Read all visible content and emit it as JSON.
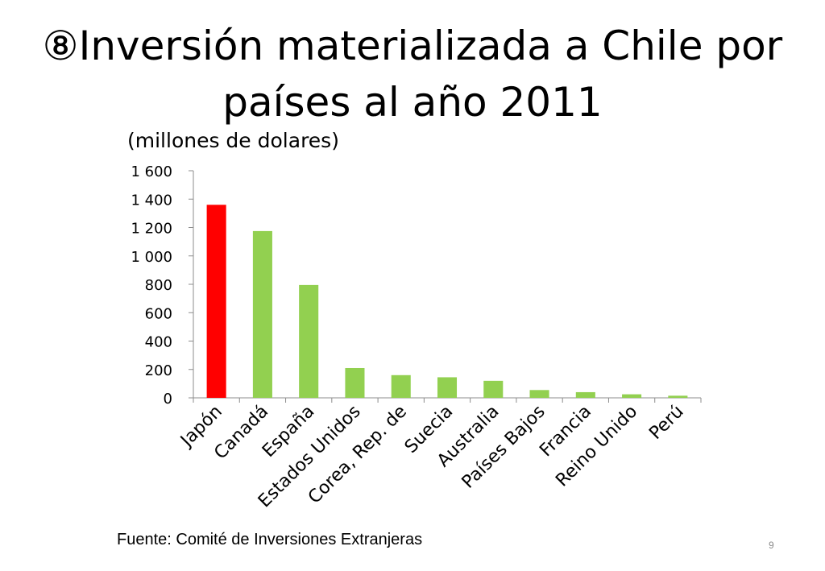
{
  "slide": {
    "title": "⑧Inversión materializada a Chile por países al año 2011",
    "source": "Fuente: Comité de Inversiones Extranjeras",
    "page_number": "9"
  },
  "chart_data": {
    "type": "bar",
    "title": "",
    "ylabel": "(millones de dolares)",
    "xlabel": "",
    "ylim": [
      0,
      1600
    ],
    "yticks": [
      0,
      200,
      400,
      600,
      800,
      1000,
      1200,
      1400,
      1600
    ],
    "ytick_labels": [
      "0",
      "200",
      "400",
      "600",
      "800",
      "1 000",
      "1 200",
      "1 400",
      "1 600"
    ],
    "grid": false,
    "legend": "none",
    "categories": [
      "Japón",
      "Canadá",
      "España",
      "Estados Unidos",
      "Corea, Rep. de",
      "Suecia",
      "Australia",
      "Países Bajos",
      "Francia",
      "Reino Unido",
      "Perú"
    ],
    "values": [
      1360,
      1175,
      795,
      210,
      160,
      145,
      120,
      55,
      40,
      25,
      15
    ],
    "colors": {
      "highlight": "#ff0000",
      "default": "#92d050",
      "axis": "#8c8c8c"
    },
    "highlight_index": 0
  }
}
